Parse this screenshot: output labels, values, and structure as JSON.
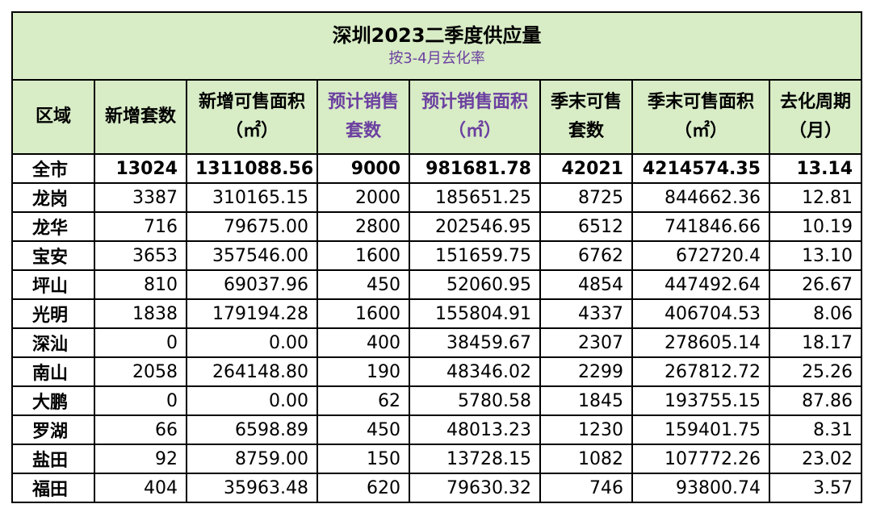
{
  "title": "深圳2023二季度供应量",
  "subtitle": "按3-4月去化率",
  "headers": {
    "region": "区域",
    "new_units": "新增套数",
    "new_area_l1": "新增可售面积",
    "new_area_l2": "（㎡）",
    "est_units_l1": "预计销售",
    "est_units_l2": "套数",
    "est_area_l1": "预计销售面积",
    "est_area_l2": "（㎡）",
    "end_units_l1": "季末可售",
    "end_units_l2": "套数",
    "end_area_l1": "季末可售面积",
    "end_area_l2": "（㎡）",
    "cycle_l1": "去化周期",
    "cycle_l2": "（月）"
  },
  "header_colors": {
    "est_columns": "#6b3fa0",
    "header_bg": "#d8ecc6"
  },
  "rows": [
    {
      "region": "全市",
      "new_units": "13024",
      "new_area": "1311088.56",
      "est_units": "9000",
      "est_area": "981681.78",
      "end_units": "42021",
      "end_area": "4214574.35",
      "cycle": "13.14"
    },
    {
      "region": "龙岗",
      "new_units": "3387",
      "new_area": "310165.15",
      "est_units": "2000",
      "est_area": "185651.25",
      "end_units": "8725",
      "end_area": "844662.36",
      "cycle": "12.81"
    },
    {
      "region": "龙华",
      "new_units": "716",
      "new_area": "79675.00",
      "est_units": "2800",
      "est_area": "202546.95",
      "end_units": "6512",
      "end_area": "741846.66",
      "cycle": "10.19"
    },
    {
      "region": "宝安",
      "new_units": "3653",
      "new_area": "357546.00",
      "est_units": "1600",
      "est_area": "151659.75",
      "end_units": "6762",
      "end_area": "672720.4",
      "cycle": "13.10"
    },
    {
      "region": "坪山",
      "new_units": "810",
      "new_area": "69037.96",
      "est_units": "450",
      "est_area": "52060.95",
      "end_units": "4854",
      "end_area": "447492.64",
      "cycle": "26.67"
    },
    {
      "region": "光明",
      "new_units": "1838",
      "new_area": "179194.28",
      "est_units": "1600",
      "est_area": "155804.91",
      "end_units": "4337",
      "end_area": "406704.53",
      "cycle": "8.06"
    },
    {
      "region": "深汕",
      "new_units": "0",
      "new_area": "0.00",
      "est_units": "400",
      "est_area": "38459.67",
      "end_units": "2307",
      "end_area": "278605.14",
      "cycle": "18.17"
    },
    {
      "region": "南山",
      "new_units": "2058",
      "new_area": "264148.80",
      "est_units": "190",
      "est_area": "48346.02",
      "end_units": "2299",
      "end_area": "267812.72",
      "cycle": "25.26"
    },
    {
      "region": "大鹏",
      "new_units": "0",
      "new_area": "0.00",
      "est_units": "62",
      "est_area": "5780.58",
      "end_units": "1845",
      "end_area": "193755.15",
      "cycle": "87.86"
    },
    {
      "region": "罗湖",
      "new_units": "66",
      "new_area": "6598.89",
      "est_units": "450",
      "est_area": "48013.23",
      "end_units": "1230",
      "end_area": "159401.75",
      "cycle": "8.31"
    },
    {
      "region": "盐田",
      "new_units": "92",
      "new_area": "8759.00",
      "est_units": "150",
      "est_area": "13728.15",
      "end_units": "1082",
      "end_area": "107772.26",
      "cycle": "23.02"
    },
    {
      "region": "福田",
      "new_units": "404",
      "new_area": "35963.48",
      "est_units": "620",
      "est_area": "79630.32",
      "end_units": "746",
      "end_area": "93800.74",
      "cycle": "3.57"
    }
  ]
}
